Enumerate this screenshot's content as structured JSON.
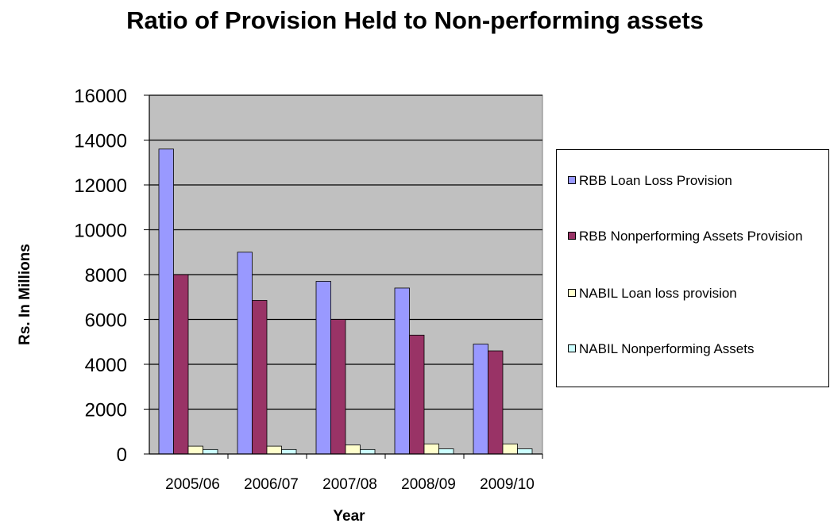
{
  "chart_data": {
    "type": "bar",
    "title": "Ratio of Provision Held to Non-performing assets",
    "xlabel": "Year",
    "ylabel": "Rs. In Millions",
    "categories": [
      "2005/06",
      "2006/07",
      "2007/08",
      "2008/09",
      "2009/10"
    ],
    "ylim": [
      0,
      16000
    ],
    "yticks": [
      "0",
      "2000",
      "4000",
      "6000",
      "8000",
      "10000",
      "12000",
      "14000",
      "16000"
    ],
    "grid": true,
    "legend_position": "right",
    "plot_background": "#c0c0c0",
    "series": [
      {
        "name": "RBB Loan Loss  Provision",
        "color": "#9999ff",
        "values": [
          13600,
          9000,
          7700,
          7400,
          4900
        ]
      },
      {
        "name": "RBB Nonperforming Assets Provision",
        "color": "#993366",
        "values": [
          8000,
          6850,
          6000,
          5300,
          4600
        ]
      },
      {
        "name": "NABIL Loan loss provision",
        "color": "#ffffcc",
        "values": [
          350,
          350,
          400,
          450,
          450
        ]
      },
      {
        "name": "NABIL Nonperforming Assets",
        "color": "#ccffff",
        "values": [
          200,
          200,
          200,
          230,
          230
        ]
      }
    ]
  }
}
